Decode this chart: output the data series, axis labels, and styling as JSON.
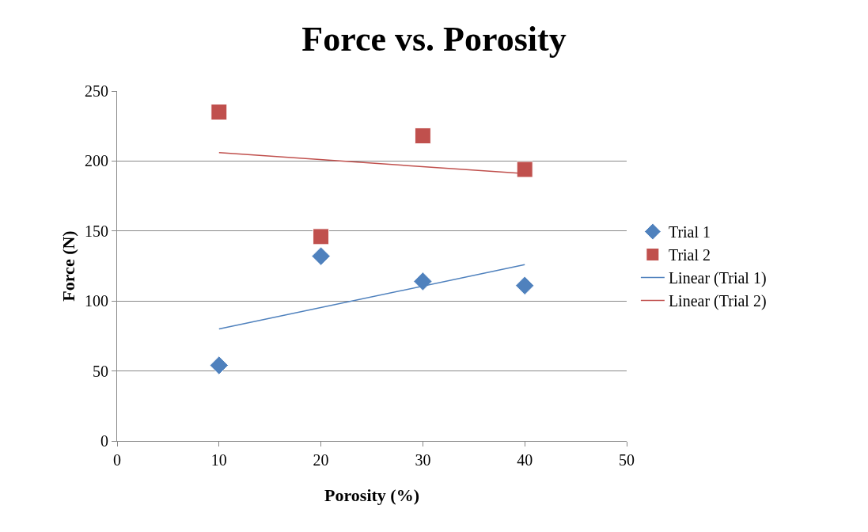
{
  "chart_data": {
    "type": "scatter",
    "title": "Force vs. Porosity",
    "xlabel": "Porosity (%)",
    "ylabel": "Force (N)",
    "xlim": [
      0,
      50
    ],
    "xticks": [
      0,
      10,
      20,
      30,
      40,
      50
    ],
    "ylim": [
      0,
      250
    ],
    "yticks": [
      0,
      50,
      100,
      150,
      200,
      250
    ],
    "grid": "y",
    "legend": "right",
    "series": [
      {
        "name": "Trial 1",
        "color": "#4f81bd",
        "marker": "diamond",
        "x": [
          10,
          20,
          30,
          40
        ],
        "values": [
          54,
          132,
          114,
          111
        ]
      },
      {
        "name": "Trial 2",
        "color": "#c0504d",
        "marker": "square",
        "x": [
          10,
          20,
          30,
          40
        ],
        "values": [
          235,
          146,
          218,
          194
        ]
      },
      {
        "name": "Linear (Trial 1)",
        "type": "line",
        "color": "#4f81bd",
        "marker": "none",
        "line_style": "solid",
        "x": [
          10,
          40
        ],
        "values": [
          80,
          126
        ]
      },
      {
        "name": "Linear (Trial 2)",
        "type": "line",
        "color": "#c0504d",
        "marker": "none",
        "line_style": "solid",
        "x": [
          10,
          40
        ],
        "values": [
          206,
          191
        ]
      }
    ]
  }
}
